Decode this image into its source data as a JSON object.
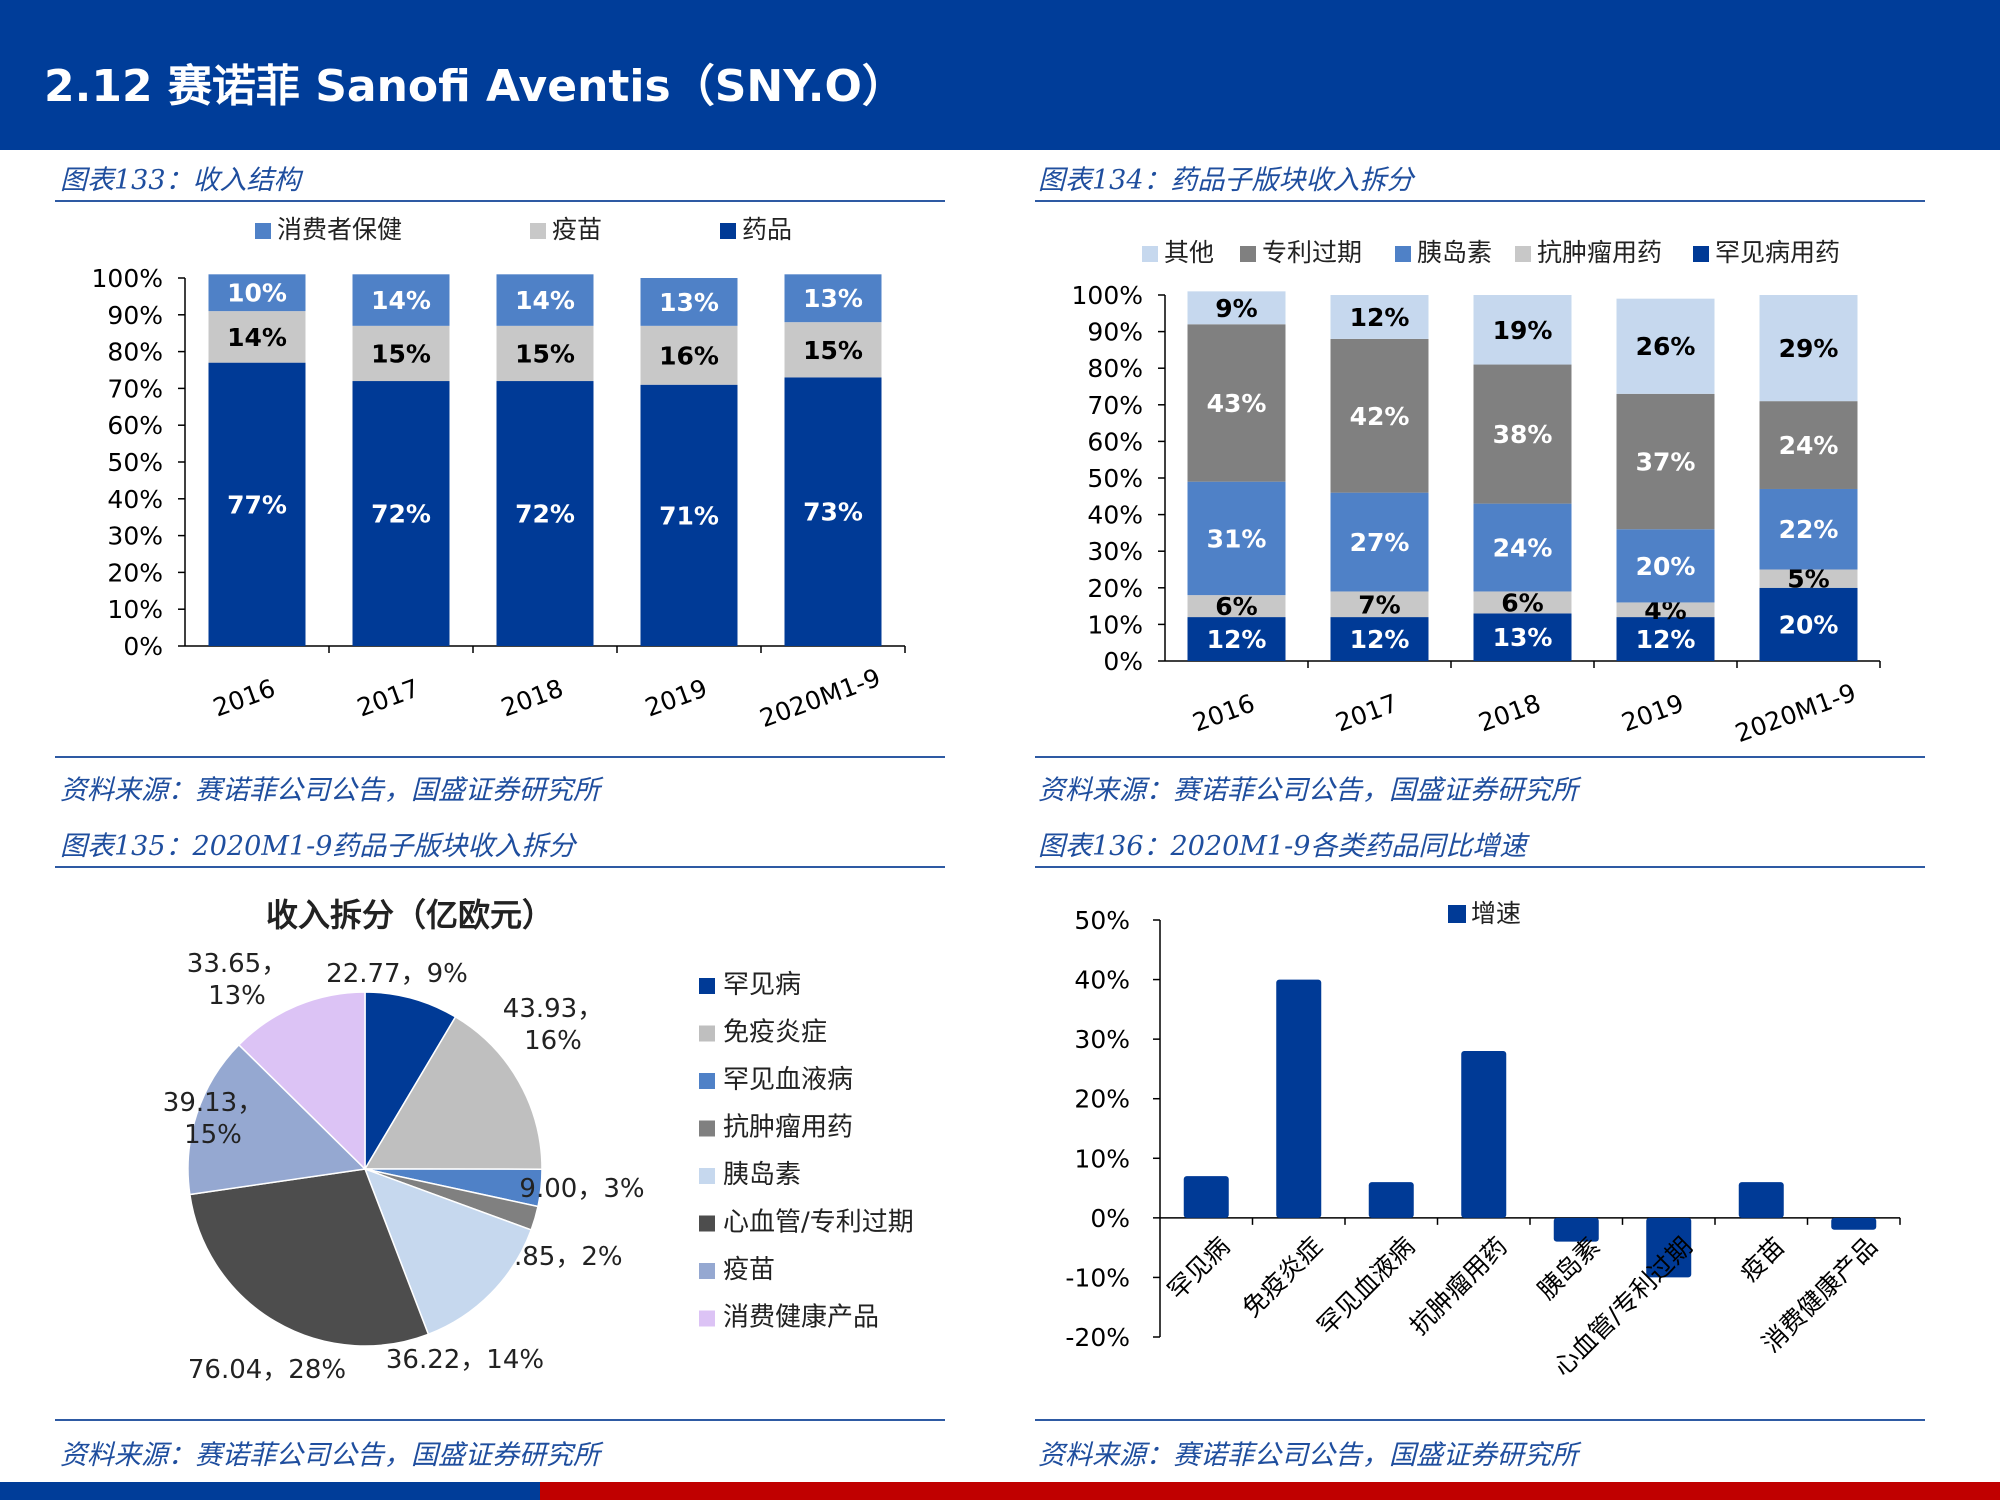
{
  "header": {
    "title": "2.12 赛诺菲 Sanofi Aventis（SNY.O）"
  },
  "panels": {
    "p133": {
      "title": "图表133：收入结构",
      "source": "资料来源：赛诺菲公司公告，国盛证券研究所"
    },
    "p134": {
      "title": "图表134：药品子版块收入拆分",
      "source": "资料来源：赛诺菲公司公告，国盛证券研究所"
    },
    "p135": {
      "title": "图表135：2020M1-9药品子版块收入拆分",
      "source": "资料来源：赛诺菲公司公告，国盛证券研究所"
    },
    "p136": {
      "title": "图表136：2020M1-9各类药品同比增速",
      "source": "资料来源：赛诺菲公司公告，国盛证券研究所"
    }
  },
  "colors": {
    "header": "#003d99",
    "footer_red": "#c00000",
    "dark_blue": "#003a96",
    "mid_blue": "#4f81c7",
    "light_gray": "#c8c8c8",
    "gray": "#808080",
    "light_blue": "#c6d8ee",
    "dark_gray": "#4d4d4d",
    "gray_blue": "#95a8d1",
    "lavender": "#dcc3f5",
    "silver": "#bfbfbf"
  },
  "chart_data": [
    {
      "id": "c133",
      "type": "bar",
      "stacked": true,
      "categories": [
        "2016",
        "2017",
        "2018",
        "2019",
        "2020M1-9"
      ],
      "series": [
        {
          "name": "药品",
          "values": [
            77,
            72,
            72,
            71,
            73
          ],
          "labels": [
            "77%",
            "72%",
            "72%",
            "71%",
            "73%"
          ],
          "color": "#003a96",
          "label_color": "#ffffff"
        },
        {
          "name": "疫苗",
          "values": [
            14,
            15,
            15,
            16,
            15
          ],
          "labels": [
            "14%",
            "15%",
            "15%",
            "16%",
            "15%"
          ],
          "color": "#c8c8c8",
          "label_color": "#000000"
        },
        {
          "name": "消费者保健",
          "values": [
            10,
            14,
            14,
            13,
            13
          ],
          "labels": [
            "10%",
            "14%",
            "14%",
            "13%",
            "13%"
          ],
          "color": "#4f81c7",
          "label_color": "#ffffff"
        }
      ],
      "legend": [
        "消费者保健",
        "疫苗",
        "药品"
      ],
      "y_ticks": [
        "0%",
        "10%",
        "20%",
        "30%",
        "40%",
        "50%",
        "60%",
        "70%",
        "80%",
        "90%",
        "100%"
      ],
      "ylim": [
        0,
        100
      ]
    },
    {
      "id": "c134",
      "type": "bar",
      "stacked": true,
      "categories": [
        "2016",
        "2017",
        "2018",
        "2019",
        "2020M1-9"
      ],
      "series": [
        {
          "name": "罕见病用药",
          "values": [
            12,
            12,
            13,
            12,
            20
          ],
          "labels": [
            "12%",
            "12%",
            "13%",
            "12%",
            "20%"
          ],
          "color": "#003a96",
          "label_color": "#ffffff"
        },
        {
          "name": "抗肿瘤用药",
          "values": [
            6,
            7,
            6,
            4,
            5
          ],
          "labels": [
            "6%",
            "7%",
            "6%",
            "4%",
            "5%"
          ],
          "color": "#c8c8c8",
          "label_color": "#000000"
        },
        {
          "name": "胰岛素",
          "values": [
            31,
            27,
            24,
            20,
            22
          ],
          "labels": [
            "31%",
            "27%",
            "24%",
            "20%",
            "22%"
          ],
          "color": "#4f81c7",
          "label_color": "#ffffff"
        },
        {
          "name": "专利过期",
          "values": [
            43,
            42,
            38,
            37,
            24
          ],
          "labels": [
            "43%",
            "42%",
            "38%",
            "37%",
            "24%"
          ],
          "color": "#808080",
          "label_color": "#ffffff"
        },
        {
          "name": "其他",
          "values": [
            9,
            12,
            19,
            26,
            29
          ],
          "labels": [
            "9%",
            "12%",
            "19%",
            "26%",
            "29%"
          ],
          "color": "#c6d8ee",
          "label_color": "#000000"
        }
      ],
      "legend": [
        "其他",
        "专利过期",
        "胰岛素",
        "抗肿瘤用药",
        "罕见病用药"
      ],
      "y_ticks": [
        "0%",
        "10%",
        "20%",
        "30%",
        "40%",
        "50%",
        "60%",
        "70%",
        "80%",
        "90%",
        "100%"
      ],
      "ylim": [
        0,
        100
      ]
    },
    {
      "id": "c135",
      "type": "pie",
      "title": "收入拆分（亿欧元）",
      "slices": [
        {
          "name": "罕见病",
          "value": 22.77,
          "line1": "22.77，9%",
          "line2": "",
          "color": "#003a96"
        },
        {
          "name": "免疫炎症",
          "value": 43.93,
          "line1": "43.93，",
          "line2": "16%",
          "color": "#bfbfbf"
        },
        {
          "name": "罕见血液病",
          "value": 9.0,
          "line1": "9.00，3%",
          "line2": "",
          "color": "#4f81c7"
        },
        {
          "name": "抗肿瘤用药",
          "value": 5.85,
          "line1": "5.85，2%",
          "line2": "",
          "color": "#808080"
        },
        {
          "name": "胰岛素",
          "value": 36.22,
          "line1": "36.22，14%",
          "line2": "",
          "color": "#c6d8ee"
        },
        {
          "name": "心血管/专利过期",
          "value": 76.04,
          "line1": "76.04，28%",
          "line2": "",
          "color": "#4d4d4d"
        },
        {
          "name": "疫苗",
          "value": 39.13,
          "line1": "39.13，",
          "line2": "15%",
          "color": "#95a8d1"
        },
        {
          "name": "消费健康产品",
          "value": 33.65,
          "line1": "33.65，",
          "line2": "13%",
          "color": "#dcc3f5"
        }
      ]
    },
    {
      "id": "c136",
      "type": "bar",
      "legend": [
        "增速"
      ],
      "categories": [
        "罕见病",
        "免疫炎症",
        "罕见血液病",
        "抗肿瘤用药",
        "胰岛素",
        "心血管/专利过期",
        "疫苗",
        "消费健康产品"
      ],
      "values": [
        7,
        40,
        6,
        28,
        -4,
        -10,
        6,
        -2
      ],
      "y_ticks": [
        "-20%",
        "-10%",
        "0%",
        "10%",
        "20%",
        "30%",
        "40%",
        "50%"
      ],
      "ylim": [
        -20,
        50
      ],
      "color": "#003a96"
    }
  ]
}
